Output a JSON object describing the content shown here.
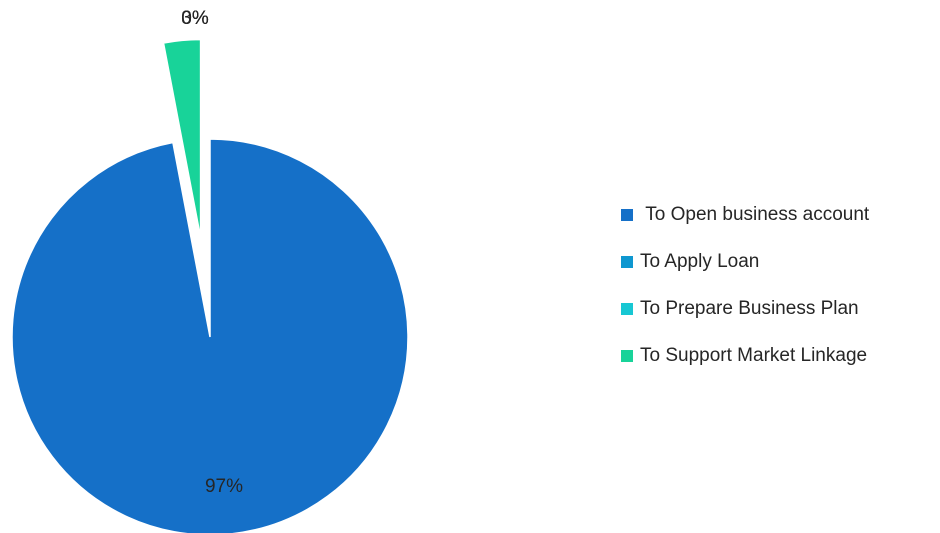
{
  "chart_data": {
    "type": "pie",
    "categories": [
      " To Open business account",
      "To Apply Loan",
      "To Prepare Business Plan",
      "To Support Market Linkage"
    ],
    "values": [
      97,
      0,
      0,
      3
    ],
    "data_labels": [
      "97%",
      "0%",
      "0%",
      "3%"
    ],
    "colors": [
      "#1570C8",
      "#0E97D0",
      "#17C7D3",
      "#18D399"
    ],
    "exploded": [
      false,
      false,
      false,
      true
    ],
    "start_angle_deg": 0,
    "direction": "clockwise",
    "legend_position": "right"
  }
}
